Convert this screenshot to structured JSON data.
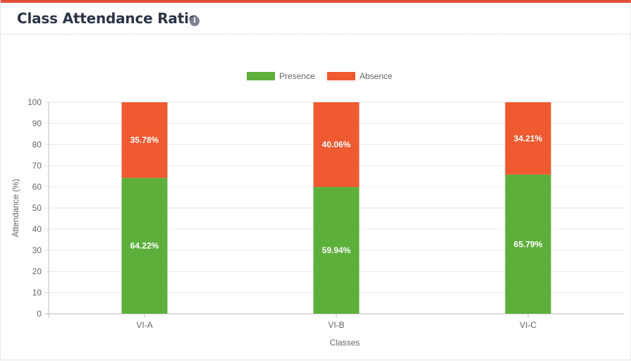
{
  "header": {
    "title": "Class Attendance Ratio",
    "info_icon": "info-icon"
  },
  "colors": {
    "accent_bar": "#e2503a",
    "presence": "#5daf3c",
    "absence": "#ef5a31"
  },
  "chart_data": {
    "type": "bar",
    "stacked": true,
    "categories": [
      "VI-A",
      "VI-B",
      "VI-C"
    ],
    "series": [
      {
        "name": "Presence",
        "color": "#5daf3c",
        "values": [
          64.22,
          59.94,
          65.79
        ],
        "labels": [
          "64.22%",
          "59.94%",
          "65.79%"
        ]
      },
      {
        "name": "Absence",
        "color": "#ef5a31",
        "values": [
          35.78,
          40.06,
          34.21
        ],
        "labels": [
          "35.78%",
          "40.06%",
          "34.21%"
        ]
      }
    ],
    "xlabel": "Classes",
    "ylabel": "Attendance (%)",
    "ylim": [
      0,
      100
    ],
    "yticks": [
      0,
      10,
      20,
      30,
      40,
      50,
      60,
      70,
      80,
      90,
      100
    ],
    "grid": true,
    "legend": "top-center"
  }
}
